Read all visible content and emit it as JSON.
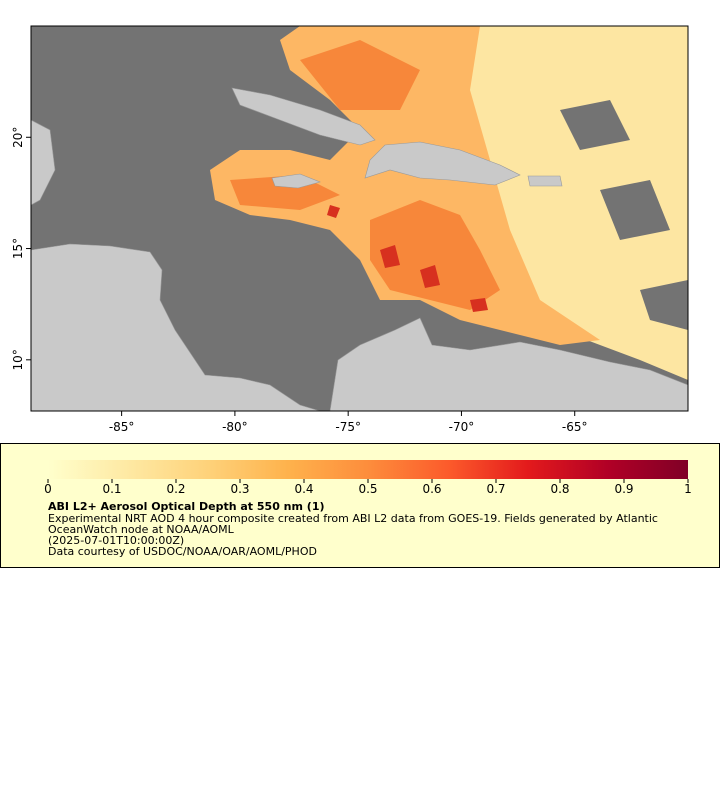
{
  "map": {
    "xlim": [
      -89,
      -60
    ],
    "ylim": [
      7.7,
      25
    ],
    "xticks": [
      {
        "value": -85,
        "label": "-85°"
      },
      {
        "value": -80,
        "label": "-80°"
      },
      {
        "value": -75,
        "label": "-75°"
      },
      {
        "value": -70,
        "label": "-70°"
      },
      {
        "value": -65,
        "label": "-65°"
      }
    ],
    "yticks": [
      {
        "value": 10,
        "label": "10°"
      },
      {
        "value": 15,
        "label": "15°"
      },
      {
        "value": 20,
        "label": "20°"
      }
    ]
  },
  "colorbar": {
    "clim": [
      0,
      1
    ],
    "ticks": [
      0,
      0.1,
      0.2,
      0.3,
      0.4,
      0.5,
      0.6,
      0.7,
      0.8,
      0.9,
      1
    ],
    "colors": [
      "#ffffcc",
      "#fee9a3",
      "#fed27a",
      "#feb24c",
      "#fd8d3c",
      "#fc5b2b",
      "#e31a1c",
      "#b10026",
      "#800026"
    ]
  },
  "caption": {
    "title": "ABI L2+ Aerosol Optical Depth at 550 nm (1)",
    "lines": [
      "Experimental NRT AOD 4 hour composite created from ABI L2 data from GOES-19. Fields generated by Atlantic",
      "OceanWatch node at NOAA/AOML",
      "(2025-07-01T10:00:00Z)",
      "Data courtesy of USDOC/NOAA/OAR/AOML/PHOD"
    ]
  }
}
